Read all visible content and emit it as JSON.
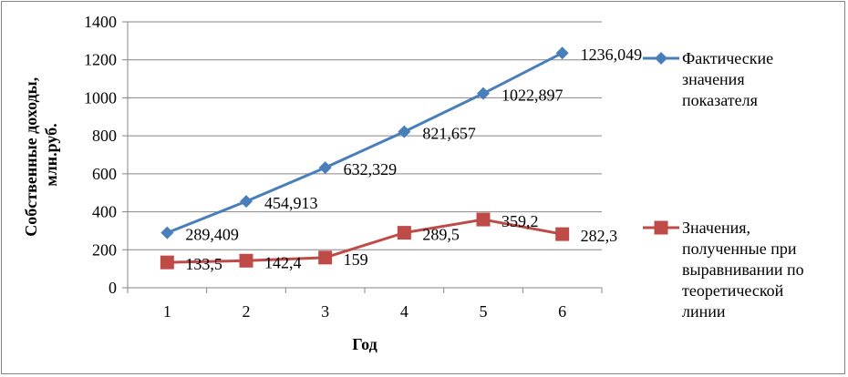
{
  "chart_data": {
    "type": "line",
    "xlabel": "Год",
    "ylabel_lines": [
      "Собственные доходы,",
      "млн.руб."
    ],
    "categories": [
      "1",
      "2",
      "3",
      "4",
      "5",
      "6"
    ],
    "ylim": [
      0,
      1400
    ],
    "yticks": [
      0,
      200,
      400,
      600,
      800,
      1000,
      1200,
      1400
    ],
    "grid": "horizontal",
    "legend_position": "right",
    "series": [
      {
        "name_lines": [
          "Фактические",
          "значения",
          "показателя"
        ],
        "color": "#4A7EBB",
        "marker": "diamond",
        "values": [
          289.409,
          454.913,
          632.329,
          821.657,
          1022.897,
          1236.049
        ],
        "labels": [
          "289,409",
          "454,913",
          "632,329",
          "821,657",
          "1022,897",
          "1236,049"
        ]
      },
      {
        "name_lines": [
          "Значения,",
          "полученные при",
          "выравнивании по",
          "теоретической",
          "линии"
        ],
        "color": "#BE4B48",
        "marker": "square",
        "values": [
          133.5,
          142.4,
          159,
          289.5,
          359.2,
          282.3
        ],
        "labels": [
          "133,5",
          "142,4",
          "159",
          "289,5",
          "359,2",
          "282,3"
        ]
      }
    ]
  }
}
